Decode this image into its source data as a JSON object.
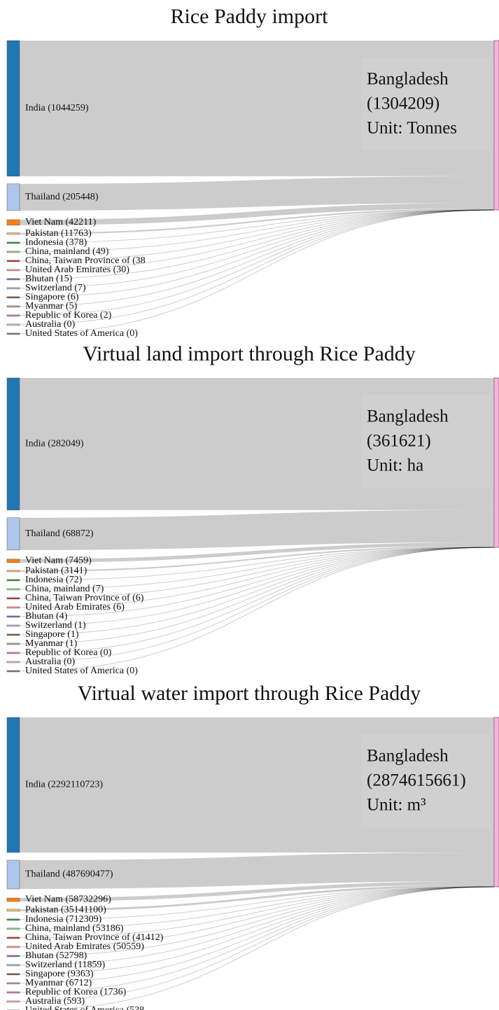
{
  "chart_data": [
    {
      "type": "sankey",
      "title": "Rice Paddy import",
      "values": [
        1044259,
        205448,
        42211,
        11763,
        378,
        49,
        38,
        30,
        15,
        7,
        6,
        5,
        2,
        0,
        0
      ],
      "value_labels": [
        "India (1044259)",
        "Thailand (205448)",
        "Viet Nam (42211)",
        "Pakistan (11763)",
        "Indonesia (378)",
        "China, mainland (49)",
        "China, Taiwan Province of (38",
        "United Arab Emirates (30)",
        "Bhutan (15)",
        "Switzerland (7)",
        "Singapore (6)",
        "Myanmar (5)",
        "Republic of Korea (2)",
        "Australia (0)",
        "United States of America (0)"
      ],
      "colors": [
        "#1f77b4",
        "#aec7e8",
        "#ff7f0e",
        "#ffbb78",
        "#2ca02c",
        "#98df8a",
        "#d62728",
        "#ff9896",
        "#9467bd",
        "#c5b0d5",
        "#8c564b",
        "#c49c94",
        "#e377c2",
        "#f7b6d2",
        "#7f7f7f"
      ],
      "target": {
        "name": "Bangladesh",
        "value": 1304209,
        "value_label": "(1304209)",
        "unit": "Unit: Tonnes",
        "color": "#f2b6d6"
      }
    },
    {
      "type": "sankey",
      "title": "Virtual land import through Rice Paddy",
      "values": [
        282049,
        68872,
        7459,
        3141,
        72,
        7,
        6,
        6,
        4,
        1,
        1,
        1,
        0,
        0,
        0
      ],
      "value_labels": [
        "India (282049)",
        "Thailand (68872)",
        "Viet Nam (7459)",
        "Pakistan (3141)",
        "Indonesia (72)",
        "China, mainland (7)",
        "China, Taiwan Province of (6)",
        "United Arab Emirates (6)",
        "Bhutan (4)",
        "Switzerland (1)",
        "Singapore (1)",
        "Myanmar (1)",
        "Republic of Korea (0)",
        "Australia (0)",
        "United States of America (0)"
      ],
      "colors": [
        "#1f77b4",
        "#aec7e8",
        "#ff7f0e",
        "#ffbb78",
        "#2ca02c",
        "#98df8a",
        "#d62728",
        "#ff9896",
        "#9467bd",
        "#c5b0d5",
        "#8c564b",
        "#c49c94",
        "#e377c2",
        "#f7b6d2",
        "#7f7f7f"
      ],
      "target": {
        "name": "Bangladesh",
        "value": 361621,
        "value_label": "(361621)",
        "unit": "Unit: ha",
        "color": "#f2b6d6"
      }
    },
    {
      "type": "sankey",
      "title": "Virtual water import through Rice Paddy",
      "values": [
        2292110723,
        487690477,
        58732296,
        35141100,
        712309,
        53186,
        41412,
        50559,
        52798,
        11859,
        9363,
        6712,
        1736,
        593,
        538
      ],
      "value_labels": [
        "India (2292110723)",
        "Thailand (487690477)",
        "Viet Nam (58732296)",
        "Pakistan (35141100)",
        "Indonesia (712309)",
        "China, mainland (53186)",
        "China, Taiwan Province of (41412)",
        "United Arab Emirates (50559)",
        "Bhutan (52798)",
        "Switzerland (11859)",
        "Singapore (9363)",
        "Myanmar (6712)",
        "Republic of Korea (1736)",
        "Australia (593)",
        "United States of America (538"
      ],
      "colors": [
        "#1f77b4",
        "#aec7e8",
        "#ff7f0e",
        "#ffbb78",
        "#2ca02c",
        "#98df8a",
        "#d62728",
        "#ff9896",
        "#9467bd",
        "#c5b0d5",
        "#8c564b",
        "#c49c94",
        "#e377c2",
        "#f7b6d2",
        "#7f7f7f"
      ],
      "target": {
        "name": "Bangladesh",
        "value": 2874615661,
        "value_label": "(2874615661)",
        "unit": "Unit: m³",
        "color": "#f2b6d6"
      }
    }
  ]
}
